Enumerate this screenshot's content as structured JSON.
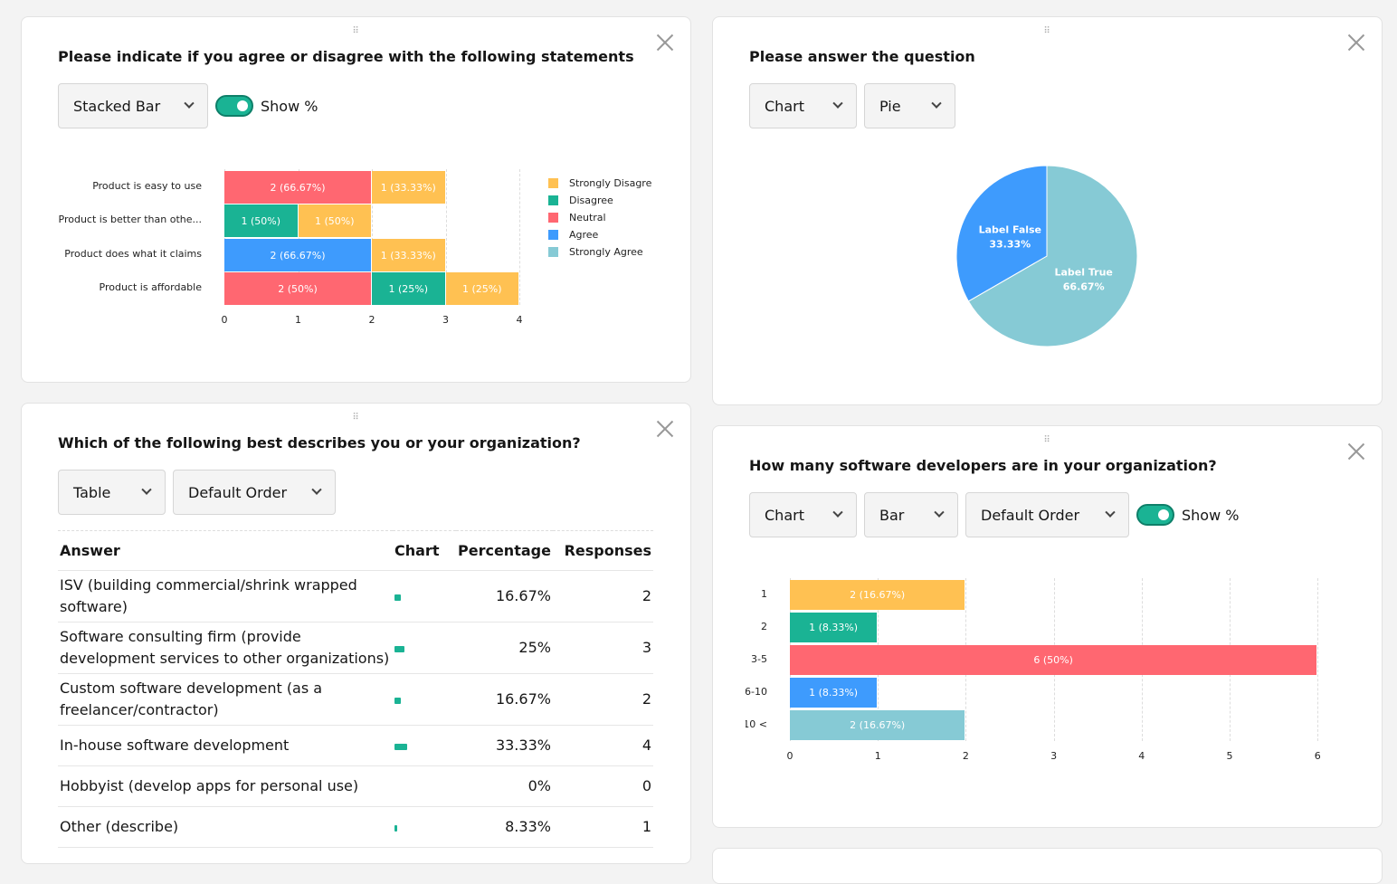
{
  "colors": {
    "yellow": "#ffc152",
    "teal": "#1ab394",
    "red": "#ff6771",
    "blue": "#3e9bfd",
    "light_teal": "#86cad5"
  },
  "panel1": {
    "title": "Please indicate if you agree or disagree with the following statements",
    "view_select": "Stacked Bar",
    "show_pct_label": "Show %",
    "show_pct": true,
    "chart_data": {
      "type": "bar",
      "orientation": "horizontal",
      "stacked": true,
      "categories": [
        "Product is easy to use",
        "Product is better than othe...",
        "Product does what it claims",
        "Product is affordable"
      ],
      "series": [
        {
          "name": "Strongly Disagre",
          "color": "#ffc152",
          "values": [
            1,
            1,
            1,
            1
          ],
          "labels": [
            "1 (33.33%)",
            "1 (50%)",
            "1 (33.33%)",
            "1 (25%)"
          ]
        },
        {
          "name": "Disagree",
          "color": "#1ab394",
          "values": [
            0,
            1,
            0,
            1
          ],
          "labels": [
            "",
            "1 (50%)",
            "",
            "1 (25%)"
          ]
        },
        {
          "name": "Neutral",
          "color": "#ff6771",
          "values": [
            2,
            0,
            0,
            2
          ],
          "labels": [
            "2 (66.67%)",
            "",
            "",
            "2 (50%)"
          ]
        },
        {
          "name": "Agree",
          "color": "#3e9bfd",
          "values": [
            0,
            0,
            2,
            0
          ],
          "labels": [
            "",
            "",
            "2 (66.67%)",
            ""
          ]
        },
        {
          "name": "Strongly Agree",
          "color": "#86cad5",
          "values": [
            0,
            0,
            0,
            0
          ],
          "labels": [
            "",
            "",
            "",
            ""
          ]
        }
      ],
      "segment_order": [
        [
          2,
          0
        ],
        [
          1,
          0
        ],
        [
          3,
          0
        ],
        [
          2,
          1,
          0
        ]
      ],
      "xlim": [
        0,
        4
      ],
      "xticks": [
        "0",
        "1",
        "2",
        "3",
        "4"
      ],
      "grid": true,
      "legend": "right"
    }
  },
  "panel2": {
    "title": "Please answer the question",
    "view_select": "Chart",
    "type_select": "Pie",
    "chart_data": {
      "type": "pie",
      "slices": [
        {
          "label": "Label True",
          "value": 66.67,
          "text": "66.67%",
          "color": "#86cad5"
        },
        {
          "label": "Label False",
          "value": 33.33,
          "text": "33.33%",
          "color": "#3e9bfd"
        }
      ]
    }
  },
  "panel3": {
    "title": "Which of the following best describes you or your organization?",
    "view_select": "Table",
    "order_select": "Default Order",
    "columns": [
      "Answer",
      "Chart",
      "Percentage",
      "Responses"
    ],
    "rows": [
      {
        "answer": "ISV (building commercial/shrink wrapped software)",
        "pct": "16.67%",
        "pct_value": 16.67,
        "responses": "2"
      },
      {
        "answer": "Software consulting firm (provide development services to other organizations)",
        "pct": "25%",
        "pct_value": 25,
        "responses": "3"
      },
      {
        "answer": "Custom software development (as a freelancer/contractor)",
        "pct": "16.67%",
        "pct_value": 16.67,
        "responses": "2"
      },
      {
        "answer": "In-house software development",
        "pct": "33.33%",
        "pct_value": 33.33,
        "responses": "4"
      },
      {
        "answer": "Hobbyist (develop apps for personal use)",
        "pct": "0%",
        "pct_value": 0,
        "responses": "0"
      },
      {
        "answer": "Other (describe)",
        "pct": "8.33%",
        "pct_value": 8.33,
        "responses": "1"
      }
    ]
  },
  "panel4": {
    "title": "How many software developers are in your organization?",
    "view_select": "Chart",
    "type_select": "Bar",
    "order_select": "Default Order",
    "show_pct_label": "Show %",
    "show_pct": true,
    "chart_data": {
      "type": "bar",
      "orientation": "horizontal",
      "categories": [
        "1",
        "2",
        "3-5",
        "6-10",
        "> 10"
      ],
      "values": [
        2,
        1,
        6,
        1,
        2
      ],
      "labels": [
        "2 (16.67%)",
        "1 (8.33%)",
        "6 (50%)",
        "1 (8.33%)",
        "2 (16.67%)"
      ],
      "colors": [
        "#ffc152",
        "#1ab394",
        "#ff6771",
        "#3e9bfd",
        "#86cad5"
      ],
      "xlim": [
        0,
        6
      ],
      "xticks": [
        "0",
        "1",
        "2",
        "3",
        "4",
        "5",
        "6"
      ],
      "grid": true
    }
  }
}
